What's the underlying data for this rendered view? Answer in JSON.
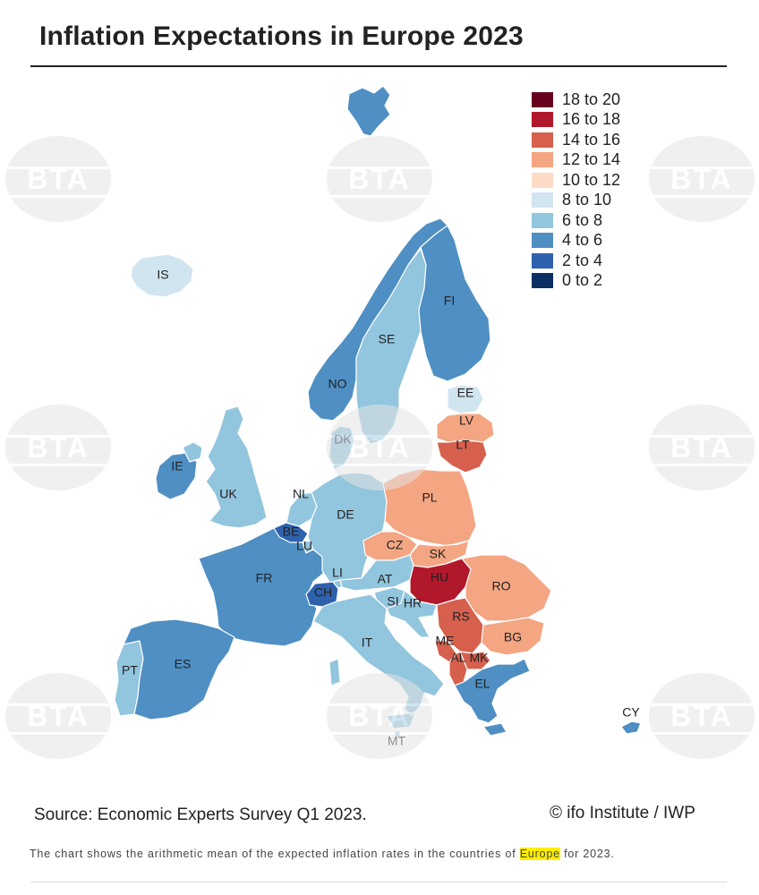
{
  "title": "Inflation Expectations in Europe 2023",
  "legend": [
    {
      "label": "18 to 20",
      "color": "#67001f"
    },
    {
      "label": "16 to 18",
      "color": "#b2182b"
    },
    {
      "label": "14 to 16",
      "color": "#d6604d"
    },
    {
      "label": "12 to 14",
      "color": "#f4a582"
    },
    {
      "label": "10 to 12",
      "color": "#fddbc7"
    },
    {
      "label": "8 to 10",
      "color": "#d1e5f0"
    },
    {
      "label": "6 to 8",
      "color": "#92c5de"
    },
    {
      "label": "4 to 6",
      "color": "#4f8fc3"
    },
    {
      "label": "2 to 4",
      "color": "#2f62ad"
    },
    {
      "label": "0 to 2",
      "color": "#0b2e62"
    }
  ],
  "countries": {
    "IS": {
      "label": "IS",
      "color": "#d1e5f0"
    },
    "NO": {
      "label": "NO",
      "color": "#4f8fc3"
    },
    "SE": {
      "label": "SE",
      "color": "#92c5de"
    },
    "FI": {
      "label": "FI",
      "color": "#4f8fc3"
    },
    "EE": {
      "label": "EE",
      "color": "#d1e5f0"
    },
    "LV": {
      "label": "LV",
      "color": "#f4a582"
    },
    "LT": {
      "label": "LT",
      "color": "#d6604d"
    },
    "DK": {
      "label": "DK",
      "color": "#92c5de"
    },
    "IE": {
      "label": "IE",
      "color": "#4f8fc3"
    },
    "UK": {
      "label": "UK",
      "color": "#92c5de"
    },
    "NL": {
      "label": "NL",
      "color": "#92c5de"
    },
    "BE": {
      "label": "BE",
      "color": "#2f62ad"
    },
    "LU": {
      "label": "LU",
      "color": "#92c5de"
    },
    "DE": {
      "label": "DE",
      "color": "#92c5de"
    },
    "PL": {
      "label": "PL",
      "color": "#f4a582"
    },
    "CZ": {
      "label": "CZ",
      "color": "#f4a582"
    },
    "SK": {
      "label": "SK",
      "color": "#f4a582"
    },
    "FR": {
      "label": "FR",
      "color": "#4f8fc3"
    },
    "LI": {
      "label": "LI",
      "color": "#92c5de"
    },
    "CH": {
      "label": "CH",
      "color": "#2f62ad"
    },
    "AT": {
      "label": "AT",
      "color": "#92c5de"
    },
    "HU": {
      "label": "HU",
      "color": "#b2182b"
    },
    "RO": {
      "label": "RO",
      "color": "#f4a582"
    },
    "SI": {
      "label": "SI",
      "color": "#92c5de"
    },
    "HR": {
      "label": "HR",
      "color": "#92c5de"
    },
    "RS": {
      "label": "RS",
      "color": "#d6604d"
    },
    "BG": {
      "label": "BG",
      "color": "#f4a582"
    },
    "ME": {
      "label": "ME",
      "color": "#d6604d"
    },
    "AL": {
      "label": "AL",
      "color": "#d6604d"
    },
    "MK": {
      "label": "MK",
      "color": "#d6604d"
    },
    "EL": {
      "label": "EL",
      "color": "#4f8fc3"
    },
    "IT": {
      "label": "IT",
      "color": "#92c5de"
    },
    "PT": {
      "label": "PT",
      "color": "#92c5de"
    },
    "ES": {
      "label": "ES",
      "color": "#4f8fc3"
    },
    "MT": {
      "label": "MT",
      "color": "#92c5de"
    },
    "CY": {
      "label": "CY",
      "color": "#4f8fc3"
    }
  },
  "watermark_text": "BTA",
  "source": "Source: Economic Experts Survey Q1 2023.",
  "credit": "© ifo Institute / IWP",
  "note_before": "The chart shows the arithmetic mean of the expected inflation rates in the countries of ",
  "note_highlight": "Europe",
  "note_after": " for 2023."
}
